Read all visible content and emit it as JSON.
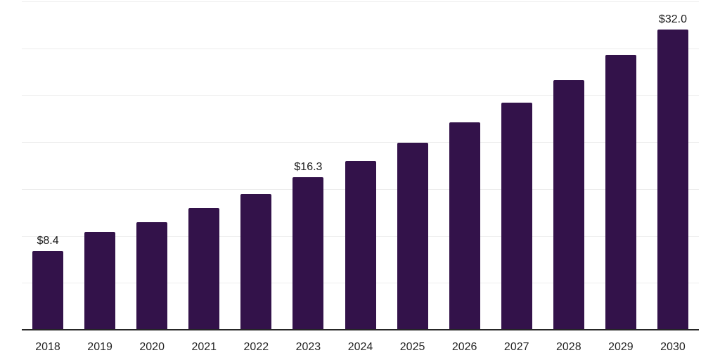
{
  "chart_data": {
    "type": "bar",
    "title": "",
    "xlabel": "",
    "ylabel": "",
    "categories": [
      "2018",
      "2019",
      "2020",
      "2021",
      "2022",
      "2023",
      "2024",
      "2025",
      "2026",
      "2027",
      "2028",
      "2029",
      "2030"
    ],
    "values": [
      8.4,
      10.4,
      11.5,
      13.0,
      14.5,
      16.3,
      18.0,
      19.9,
      22.1,
      24.2,
      26.6,
      29.3,
      32.0
    ],
    "data_labels": [
      "$8.4",
      null,
      null,
      null,
      null,
      "$16.3",
      null,
      null,
      null,
      null,
      null,
      null,
      "$32.0"
    ],
    "ylim": [
      0,
      35
    ],
    "grid_step": 5,
    "grid": "horizontal",
    "legend_position": "none",
    "y_axis_tick_labels_visible": false,
    "colors": {
      "bar": "#33124A",
      "grid": "#ededed",
      "axis": "#262626",
      "data_label": "#1a1a1a",
      "tick_label": "#262626",
      "background": "#ffffff"
    }
  }
}
